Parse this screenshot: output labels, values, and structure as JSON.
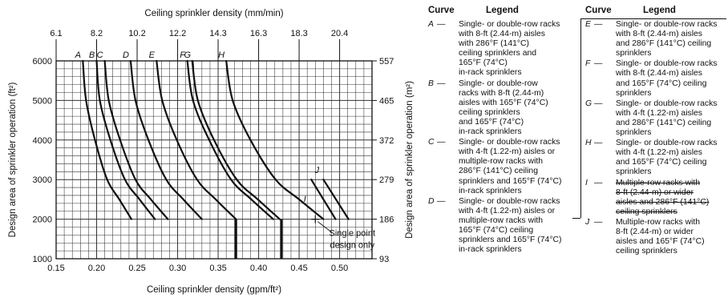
{
  "chart_data": {
    "type": "line",
    "xlabel_bottom": "Ceiling sprinkler density (gpm/ft²)",
    "xlabel_top": "Ceiling sprinkler density (mm/min)",
    "ylabel_left": "Design area of sprinkler operation (ft²)",
    "ylabel_right": "Design area of sprinkler operation (m²)",
    "xlim": [
      0.15,
      0.54
    ],
    "ylim": [
      1000,
      6000
    ],
    "x_ticks": [
      "0.15",
      "0.20",
      "0.25",
      "0.30",
      "0.35",
      "0.40",
      "0.45",
      "0.50"
    ],
    "x_tick_values": [
      0.15,
      0.2,
      0.25,
      0.3,
      0.35,
      0.4,
      0.45,
      0.5
    ],
    "x_top_ticks": [
      "6.1",
      "8.2",
      "10.2",
      "12.2",
      "14.3",
      "16.3",
      "18.3",
      "20.4"
    ],
    "y_ticks_left": [
      "1000",
      "2000",
      "3000",
      "4000",
      "5000",
      "6000"
    ],
    "y_tick_values": [
      1000,
      2000,
      3000,
      4000,
      5000,
      6000
    ],
    "y_ticks_right": [
      "93",
      "186",
      "279",
      "372",
      "465",
      "557"
    ],
    "grid": true,
    "series": [
      {
        "name": "A",
        "x": [
          0.183,
          0.187,
          0.198,
          0.213,
          0.228,
          0.243
        ],
        "y": [
          6000,
          5000,
          4000,
          3000,
          2500,
          2000
        ]
      },
      {
        "name": "B",
        "x": [
          0.2,
          0.204,
          0.217,
          0.235,
          0.253,
          0.272
        ],
        "y": [
          6000,
          5000,
          4000,
          3000,
          2500,
          2000
        ]
      },
      {
        "name": "C",
        "x": [
          0.21,
          0.215,
          0.229,
          0.248,
          0.267,
          0.288
        ],
        "y": [
          6000,
          5000,
          4000,
          3000,
          2500,
          2000
        ]
      },
      {
        "name": "D",
        "x": [
          0.242,
          0.248,
          0.264,
          0.286,
          0.307,
          0.33
        ],
        "y": [
          6000,
          5000,
          4000,
          3000,
          2500,
          2000
        ]
      },
      {
        "name": "E",
        "x": [
          0.274,
          0.281,
          0.299,
          0.324,
          0.347,
          0.372
        ],
        "y": [
          6000,
          5000,
          4000,
          3000,
          2500,
          2000
        ]
      },
      {
        "name": "F",
        "x": [
          0.312,
          0.319,
          0.339,
          0.366,
          0.391,
          0.418
        ],
        "y": [
          6000,
          5000,
          4000,
          3000,
          2500,
          2000
        ]
      },
      {
        "name": "G",
        "x": [
          0.318,
          0.325,
          0.345,
          0.373,
          0.399,
          0.426
        ],
        "y": [
          6000,
          5000,
          4000,
          3000,
          2500,
          2000
        ]
      },
      {
        "name": "H",
        "x": [
          0.36,
          0.368,
          0.39,
          0.421,
          0.45,
          0.48
        ],
        "y": [
          6000,
          5000,
          4000,
          3000,
          2500,
          2000
        ]
      },
      {
        "name": "I",
        "x": [
          0.465,
          0.495
        ],
        "y": [
          3000,
          2000
        ]
      },
      {
        "name": "J",
        "x": [
          0.48,
          0.511
        ],
        "y": [
          3000,
          2000
        ]
      }
    ],
    "annotations": [
      {
        "text": "Single point design only",
        "x": 0.47,
        "y": 2000
      }
    ],
    "design_points": [
      {
        "x": 0.372,
        "y": 2000
      },
      {
        "x": 0.428,
        "y": 2000
      }
    ]
  },
  "legend": {
    "headers": {
      "curve": "Curve",
      "legend": "Legend"
    },
    "entries": [
      {
        "letter": "A",
        "text": "Single- or double-row racks with 8-ft (2.44-m) aisles with 286°F (141°C) ceiling sprinklers and 165°F (74°C) in-rack sprinklers",
        "lines": [
          "Single- or double-row racks",
          "with 8-ft (2.44-m) aisles",
          "with 286°F (141°C)",
          "ceiling sprinklers and",
          "165°F (74°C)",
          "in-rack sprinklers"
        ]
      },
      {
        "letter": "B",
        "text": "Single- or double-row racks with 8-ft (2.44-m) aisles with 165°F (74°C) ceiling sprinklers and 165°F (74°C) in-rack sprinklers",
        "lines": [
          "Single- or double-row",
          "racks with 8-ft (2.44-m)",
          "aisles with 165°F (74°C)",
          "ceiling sprinklers",
          "and 165°F (74°C)",
          "in-rack sprinklers"
        ]
      },
      {
        "letter": "C",
        "text": "Single- or double-row racks with 4-ft (1.22-m) aisles or multiple-row racks with 286°F (141°C) ceiling sprinklers and 165°F (74°C) in-rack sprinklers",
        "lines": [
          "Single- or double-row racks",
          "with 4-ft (1.22-m) aisles or",
          "multiple-row racks with",
          "286°F (141°C) ceiling",
          "sprinklers and 165°F (74°C)",
          "in-rack sprinklers"
        ]
      },
      {
        "letter": "D",
        "text": "Single- or double-row racks with 4-ft (1.22-m) aisles or multiple-row racks with 165°F (74°C) ceiling sprinklers and 165°F (74°C) in-rack sprinklers",
        "lines": [
          "Single- or double-row racks",
          "with 4-ft (1.22-m) aisles or",
          "multiple-row racks with",
          "165°F (74°C) ceiling",
          "sprinklers and 165°F (74°C)",
          "in-rack sprinklers"
        ]
      },
      {
        "letter": "E",
        "text": "Single- or double-row racks with 8-ft (2.44-m) aisles and 286°F (141°C) ceiling sprinklers",
        "lines": [
          "Single- or double-row racks",
          "with 8-ft (2.44-m) aisles",
          "and 286°F (141°C) ceiling",
          "sprinklers"
        ]
      },
      {
        "letter": "F",
        "text": "Single- or double-row racks with 8-ft (2.44-m) aisles and 165°F (74°C) ceiling sprinklers",
        "lines": [
          "Single- or double-row racks",
          "with 8-ft (2.44-m) aisles",
          "and 165°F (74°C) ceiling",
          "sprinklers"
        ]
      },
      {
        "letter": "G",
        "text": "Single- or double-row racks with 4-ft (1.22-m) aisles and 286°F (141°C) ceiling sprinklers",
        "lines": [
          "Single- or double-row racks",
          "with 4-ft (1.22-m) aisles",
          "and 286°F (141°C) ceiling",
          "sprinklers"
        ]
      },
      {
        "letter": "H",
        "text": "Single- or double-row racks with 4-ft (1.22-m) aisles and 165°F (74°C) ceiling sprinklers",
        "lines": [
          "Single- or double-row racks",
          "with 4-ft (1.22-m) aisles",
          "and 165°F (74°C) ceiling",
          "sprinklers"
        ]
      },
      {
        "letter": "I",
        "text": "Multiple-row racks with 8-ft (2.44-m) or wider aisles and 286°F (141°C) ceiling sprinklers",
        "lines": [
          "Multiple-row racks with",
          "8-ft (2.44-m) or wider",
          "aisles and 286°F (141°C)",
          "ceiling sprinklers"
        ]
      },
      {
        "letter": "J",
        "text": "Multiple-row racks with 8-ft (2.44-m) or wider aisles and 165°F (74°C) ceiling sprinklers",
        "lines": [
          "Multiple-row racks with",
          "8-ft (2.44-m) or wider",
          "aisles and 165°F (74°C)",
          "ceiling sprinklers"
        ]
      }
    ]
  }
}
